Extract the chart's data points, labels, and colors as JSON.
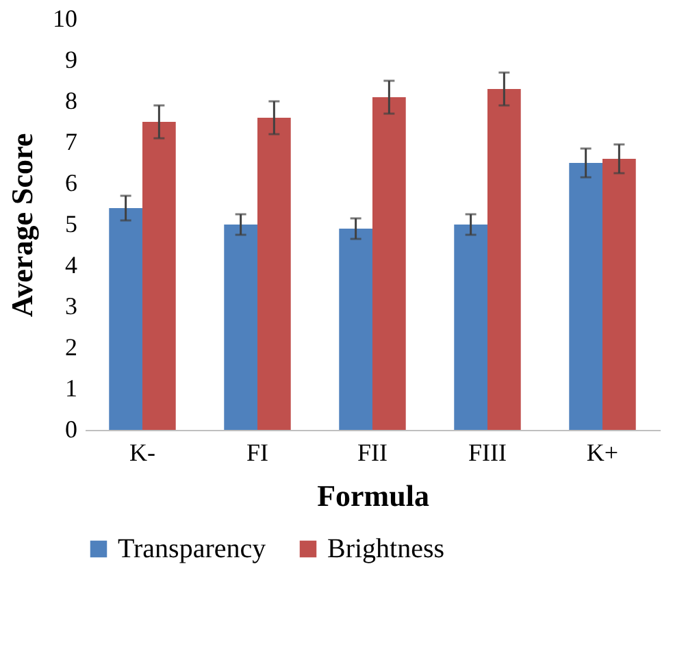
{
  "chart_data": {
    "type": "bar",
    "xlabel": "Formula",
    "ylabel": "Average Score",
    "categories": [
      "K-",
      "FI",
      "FII",
      "FIII",
      "K+"
    ],
    "series": [
      {
        "name": "Transparency",
        "color": "#4f81bd",
        "values": [
          5.4,
          5.0,
          4.9,
          5.0,
          6.5
        ],
        "errors": [
          0.3,
          0.25,
          0.25,
          0.25,
          0.35
        ]
      },
      {
        "name": "Brightness",
        "color": "#c0504d",
        "values": [
          7.5,
          7.6,
          8.1,
          8.3,
          6.6
        ],
        "errors": [
          0.4,
          0.4,
          0.4,
          0.4,
          0.35
        ]
      }
    ],
    "ylim": [
      0,
      10
    ],
    "yticks": [
      0,
      1,
      2,
      3,
      4,
      5,
      6,
      7,
      8,
      9,
      10
    ],
    "grid": false,
    "legend": "bottom"
  }
}
